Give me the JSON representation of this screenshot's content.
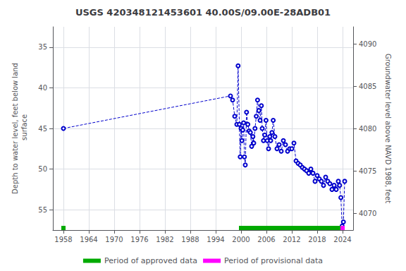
{
  "chart_data": {
    "type": "line",
    "title": "USGS 420348121453601 40.00S/09.00E-28ADB01",
    "ylabel": "Depth to water level, feet below land\n surface",
    "y2label": "Groundwater level above NAVD 1988, feet",
    "xlim": [
      1955.5,
      2026.5
    ],
    "xticks": [
      1958,
      1964,
      1970,
      1976,
      1982,
      1988,
      1994,
      2000,
      2006,
      2012,
      2018,
      2024
    ],
    "ylim": [
      57.5,
      32.5
    ],
    "yticks": [
      35,
      40,
      45,
      50,
      55
    ],
    "y2lim": [
      4068,
      4092
    ],
    "y2ticks": [
      4070,
      4075,
      4080,
      4085,
      4090
    ],
    "grid": true,
    "series": [
      {
        "type": "line",
        "color": "#0000cc",
        "marker": "open_circle",
        "line_style": "dashed",
        "x": [
          1958.0,
          1997.5,
          1998.0,
          1998.5,
          1999.0,
          1999.3,
          1999.6,
          1999.8,
          2000.0,
          2000.2,
          2000.4,
          2000.6,
          2000.8,
          2001.0,
          2001.3,
          2001.6,
          2001.9,
          2002.2,
          2002.5,
          2002.8,
          2003.0,
          2003.3,
          2003.6,
          2003.9,
          2004.2,
          2004.5,
          2004.8,
          2005.0,
          2005.3,
          2005.6,
          2005.9,
          2006.2,
          2006.5,
          2006.8,
          2007.0,
          2007.3,
          2007.6,
          2008.0,
          2008.5,
          2009.0,
          2009.5,
          2010.0,
          2010.5,
          2011.0,
          2011.5,
          2012.0,
          2012.5,
          2013.0,
          2013.5,
          2014.0,
          2014.5,
          2015.0,
          2015.5,
          2016.0,
          2016.5,
          2017.0,
          2017.5,
          2018.0,
          2018.5,
          2019.0,
          2019.5,
          2020.0,
          2020.5,
          2021.0,
          2021.5,
          2022.0,
          2022.5,
          2023.0,
          2023.3,
          2023.6,
          2023.9,
          2024.2,
          2024.5
        ],
        "values": [
          45.0,
          41.0,
          41.5,
          43.5,
          44.5,
          37.3,
          44.5,
          48.5,
          45.0,
          46.5,
          45.2,
          44.3,
          48.5,
          49.5,
          43.0,
          44.5,
          45.3,
          45.5,
          47.2,
          46.0,
          46.8,
          45.0,
          43.5,
          41.5,
          42.8,
          44.0,
          42.2,
          45.0,
          46.5,
          45.8,
          44.0,
          46.5,
          47.5,
          46.0,
          46.5,
          45.5,
          44.0,
          46.0,
          47.5,
          47.0,
          47.8,
          46.5,
          47.0,
          47.8,
          47.5,
          47.5,
          46.8,
          49.0,
          49.3,
          49.5,
          49.8,
          50.0,
          50.2,
          50.5,
          50.0,
          50.5,
          51.5,
          50.8,
          51.2,
          51.5,
          52.0,
          51.0,
          51.5,
          51.8,
          52.5,
          52.0,
          52.5,
          51.5,
          52.0,
          53.5,
          57.0,
          56.5,
          51.5
        ]
      }
    ],
    "periods": [
      {
        "name": "Period of approved data",
        "color": "#00aa00",
        "ranges": [
          [
            1957.5,
            1958.5
          ],
          [
            1999.5,
            2023.5
          ]
        ]
      },
      {
        "name": "Period of provisional data",
        "color": "#ff00ff",
        "ranges": [
          [
            2023.5,
            2024.5
          ]
        ]
      }
    ]
  }
}
